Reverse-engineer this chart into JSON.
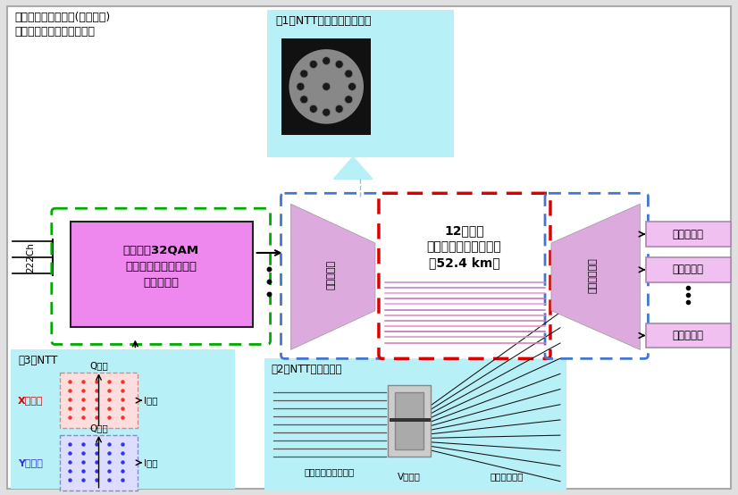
{
  "bg_color": "#e0e0e0",
  "main_bg": "#ffffff",
  "title_text1": "デンマーク工科大学(盛岡教授)",
  "title_text2": "：空間多重の提唱・拡張性",
  "box1_label1": "偏波多重32QAM",
  "box1_label2": "デジタルコヒーレント",
  "box1_label3": "光送信回路",
  "box1_border_color": "#00aa00",
  "box1_fill": "#ee88ee",
  "fiber_box_label1": "12コア・",
  "fiber_box_label2": "マルチコア光ファイバ",
  "fiber_box_label3": "（52.4 km）",
  "fiber_border_color": "#dd0000",
  "fan_fill": "#ddaadd",
  "fan_border_color": "#4477cc",
  "rx_label": "光受信回路",
  "rx_fill": "#f0c0f0",
  "rx_border_color": "#aa88aa",
  "bubble1_label": "（1）NTT・フジクラ・北大",
  "bubble1_fill": "#b8f0f8",
  "bubble2_label": "（2）NTT・フジクラ",
  "bubble2_fill": "#b8f0f8",
  "bubble3_label": "（3）NTT",
  "bubble3_fill": "#b8f0f8",
  "label_fanin": "ファンイン",
  "label_fanout": "ファンアウト",
  "label_222ch": "222Ch",
  "label_multicore": "マルチコアファイバ",
  "label_vgroove": "V溝基板",
  "label_thinfiber": "細径ファイバ",
  "label_xpol": "X偏波：",
  "label_ypol": "Y偏波：",
  "label_icomp": "I成分",
  "label_qcomp": "Q成分",
  "dot_red": "#ee3333",
  "dot_blue": "#3333ee"
}
